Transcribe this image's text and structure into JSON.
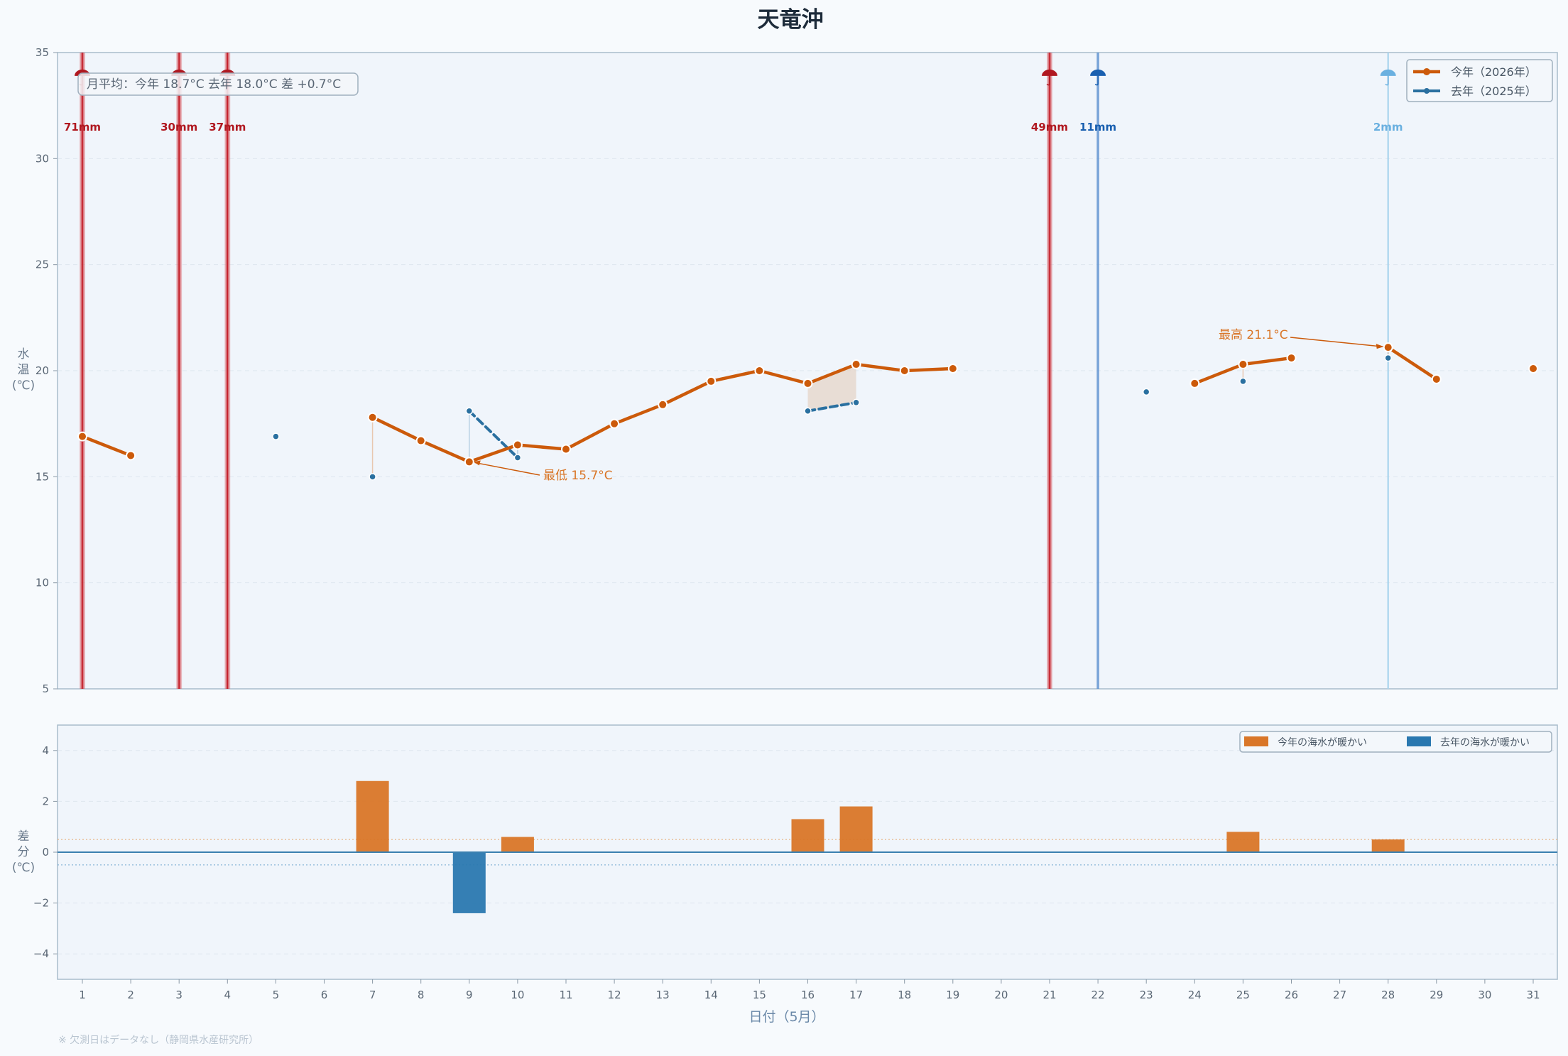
{
  "chart_data": [
    {
      "type": "line",
      "title": "天竜沖",
      "ylabel": "水\n温\n(℃)",
      "ylim": [
        5,
        35
      ],
      "yticks": [
        5,
        10,
        15,
        20,
        25,
        30,
        35
      ],
      "x": [
        1,
        2,
        3,
        4,
        5,
        6,
        7,
        8,
        9,
        10,
        11,
        12,
        13,
        14,
        15,
        16,
        17,
        18,
        19,
        20,
        21,
        22,
        23,
        24,
        25,
        26,
        27,
        28,
        29,
        30,
        31
      ],
      "grid": true,
      "legend_position": "top-right",
      "series": [
        {
          "name": "今年（2026年）",
          "color": "#cc5a0a",
          "values": [
            16.9,
            16.0,
            null,
            null,
            null,
            null,
            17.8,
            16.7,
            15.7,
            16.5,
            16.3,
            17.5,
            18.4,
            19.5,
            20.0,
            19.4,
            20.3,
            20.0,
            20.1,
            null,
            null,
            null,
            null,
            19.4,
            20.3,
            20.6,
            null,
            21.1,
            19.6,
            null,
            20.1
          ]
        },
        {
          "name": "去年（2025年）",
          "color": "#2a70a0",
          "values": [
            null,
            null,
            null,
            null,
            16.9,
            null,
            15.0,
            null,
            18.1,
            15.9,
            null,
            null,
            null,
            null,
            null,
            18.1,
            18.5,
            null,
            null,
            null,
            null,
            null,
            19.0,
            null,
            19.5,
            null,
            null,
            20.6,
            null,
            null,
            null
          ]
        }
      ],
      "rain_events": [
        {
          "day": 1,
          "label": "71mm",
          "year": "今年"
        },
        {
          "day": 3,
          "label": "30mm",
          "year": "今年"
        },
        {
          "day": 4,
          "label": "37mm",
          "year": "今年"
        },
        {
          "day": 21,
          "label": "49mm",
          "year": "今年"
        },
        {
          "day": 22,
          "label": "11mm",
          "year": "去年"
        },
        {
          "day": 28,
          "label": "2mm",
          "year": "去年"
        }
      ],
      "annotations": [
        {
          "text": "最低 15.7°C",
          "day": 9,
          "value": 15.7
        },
        {
          "text": "最高 21.1°C",
          "day": 28,
          "value": 21.1
        }
      ],
      "summary_box": "月平均：今年 18.7°C  去年 18.0°C  差 +0.7°C"
    },
    {
      "type": "bar",
      "ylabel": "差\n分\n(℃)",
      "ylim": [
        -5,
        5
      ],
      "yticks": [
        -4,
        -2,
        0,
        2,
        4
      ],
      "ytick_labels": [
        "−4",
        "−2",
        "0",
        "2",
        "4"
      ],
      "xlabel": "日付（5月）",
      "categories": [
        1,
        2,
        3,
        4,
        5,
        6,
        7,
        8,
        9,
        10,
        11,
        12,
        13,
        14,
        15,
        16,
        17,
        18,
        19,
        20,
        21,
        22,
        23,
        24,
        25,
        26,
        27,
        28,
        29,
        30,
        31
      ],
      "values": [
        null,
        null,
        null,
        null,
        null,
        null,
        2.8,
        null,
        -2.4,
        0.6,
        null,
        null,
        null,
        null,
        null,
        1.3,
        1.8,
        null,
        null,
        null,
        null,
        null,
        null,
        null,
        0.8,
        null,
        null,
        0.5,
        null,
        null,
        null
      ],
      "threshold_lines": [
        0.5,
        -0.5
      ],
      "legend_position": "top-right",
      "legend": [
        {
          "name": "今年の海水が暖かい",
          "color": "#d97628"
        },
        {
          "name": "去年の海水が暖かい",
          "color": "#2a78b0"
        }
      ]
    }
  ],
  "footnote": "※ 欠測日はデータなし（静岡県水産研究所）"
}
